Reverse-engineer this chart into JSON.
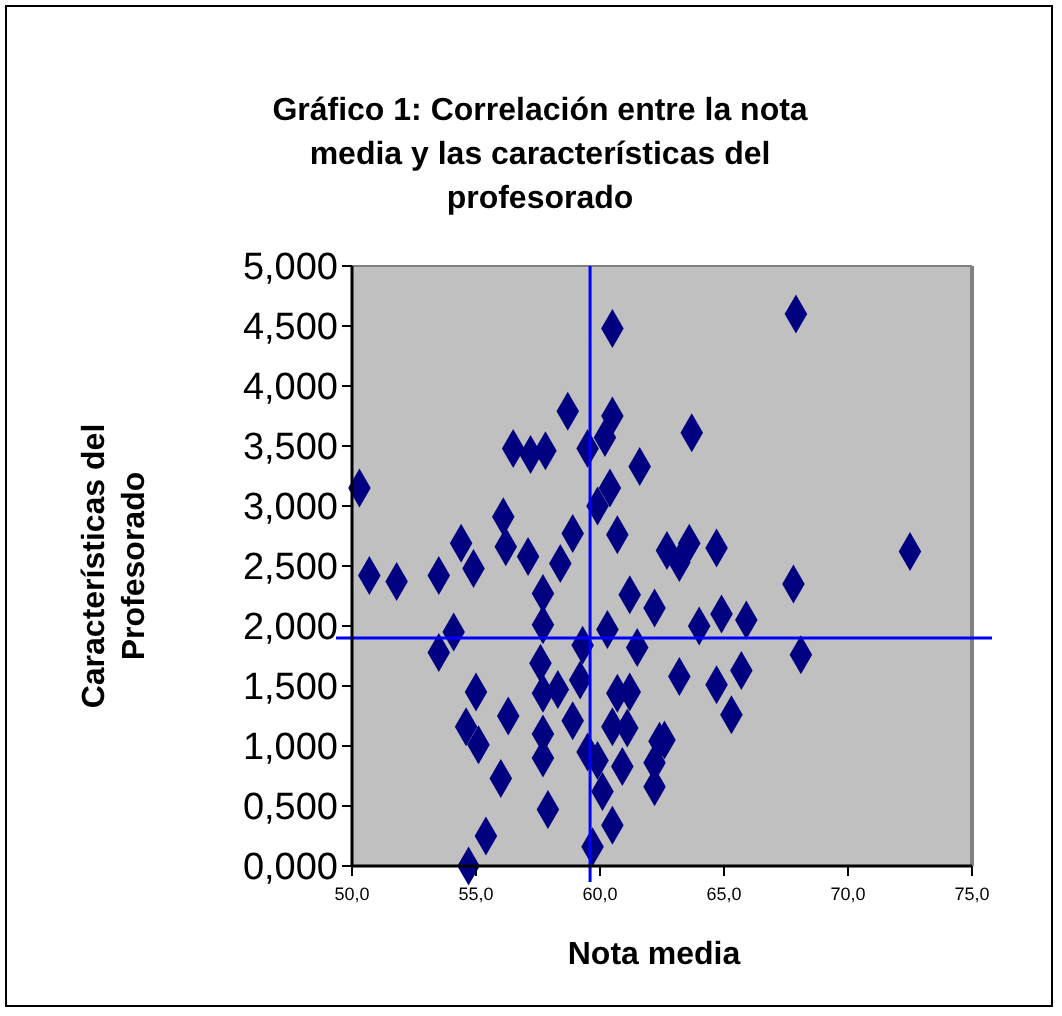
{
  "chart_data": {
    "type": "scatter",
    "title": "Gráfico 1: Correlación entre la nota media y las características del profesorado",
    "xlabel": "Nota media",
    "ylabel": "Características del Profesorado",
    "x": [
      60.5,
      58.7,
      60.5,
      56.5,
      57.2,
      57.8,
      59.5,
      60.2,
      61.6,
      50.3,
      60.4,
      59.9,
      56.1,
      54.4,
      56.2,
      57.1,
      54.9,
      58.4,
      58.9,
      60.7,
      50.7,
      51.8,
      53.5,
      62.7,
      67.9,
      63.7,
      63.6,
      63.2,
      64.7,
      72.5,
      67.8,
      57.7,
      61.2,
      62.2,
      57.7,
      54.1,
      53.5,
      59.3,
      60.3,
      61.5,
      57.6,
      55.0,
      57.7,
      58.3,
      59.2,
      60.7,
      61.2,
      56.3,
      54.6,
      55.1,
      58.9,
      57.7,
      60.5,
      61.1,
      62.4,
      57.7,
      59.5,
      59.9,
      60.9,
      62.2,
      56.0,
      60.1,
      57.9,
      60.5,
      55.4,
      59.7,
      54.7,
      64.0,
      64.9,
      65.9,
      68.1,
      63.2,
      64.7,
      65.7,
      65.3,
      62.6,
      62.2
    ],
    "series": [
      {
        "color": "#000080",
        "values": [
          4.48,
          3.79,
          3.75,
          3.48,
          3.43,
          3.46,
          3.48,
          3.57,
          3.33,
          3.15,
          3.15,
          3.0,
          2.91,
          2.69,
          2.66,
          2.58,
          2.48,
          2.52,
          2.77,
          2.76,
          2.42,
          2.37,
          2.42,
          2.63,
          4.6,
          3.61,
          2.69,
          2.53,
          2.65,
          2.62,
          2.35,
          2.27,
          2.26,
          2.15,
          2.01,
          1.95,
          1.78,
          1.84,
          1.97,
          1.82,
          1.69,
          1.45,
          1.44,
          1.47,
          1.55,
          1.44,
          1.45,
          1.25,
          1.16,
          1.01,
          1.21,
          1.1,
          1.16,
          1.15,
          1.04,
          0.9,
          0.95,
          0.88,
          0.83,
          0.66,
          0.73,
          0.62,
          0.47,
          0.34,
          0.25,
          0.16,
          0,
          2.0,
          2.1,
          2.05,
          1.76,
          1.58,
          1.51,
          1.63,
          1.26,
          1.05,
          0.86
        ]
      }
    ],
    "marker": "diamond",
    "grid": false,
    "xlim": [
      50,
      75
    ],
    "xticks": [
      {
        "value": 50,
        "label": "50,0"
      },
      {
        "value": 55,
        "label": "55,0"
      },
      {
        "value": 60,
        "label": "60,0"
      },
      {
        "value": 65,
        "label": "65,0"
      },
      {
        "value": 70,
        "label": "70,0"
      },
      {
        "value": 75,
        "label": "75,0"
      }
    ],
    "ylim": [
      0,
      5
    ],
    "yticks": [
      {
        "value": 0,
        "label": "0,000"
      },
      {
        "value": 0.5,
        "label": "0,500"
      },
      {
        "value": 1,
        "label": "1,000"
      },
      {
        "value": 1.5,
        "label": "1,500"
      },
      {
        "value": 2,
        "label": "2,000"
      },
      {
        "value": 2.5,
        "label": "2,500"
      },
      {
        "value": 3,
        "label": "3,000"
      },
      {
        "value": 3.5,
        "label": "3,500"
      },
      {
        "value": 4,
        "label": "4,000"
      },
      {
        "value": 4.5,
        "label": "4,500"
      },
      {
        "value": 5,
        "label": "5,000"
      }
    ],
    "ref_lines": [
      {
        "axis": "x",
        "value": 59.6,
        "color": "#0000ff"
      },
      {
        "axis": "y",
        "value": 1.9,
        "color": "#0000ff"
      }
    ]
  }
}
